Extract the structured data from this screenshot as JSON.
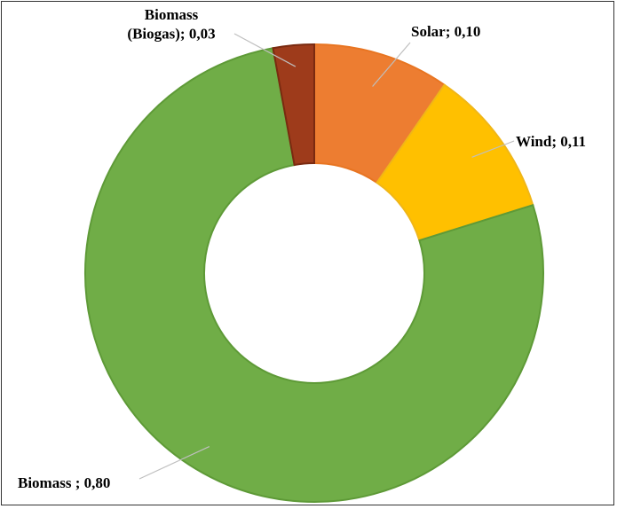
{
  "chart_data": {
    "type": "pie",
    "donut": true,
    "slices": [
      {
        "label": "Solar; 0,10",
        "category": "Solar",
        "value": 0.1,
        "color": "#ED7D31",
        "edge": "#E87522"
      },
      {
        "label": "Wind; 0,11",
        "category": "Wind",
        "value": 0.11,
        "color": "#FFC000",
        "edge": "#F0B618"
      },
      {
        "label": "Biomass ; 0,80",
        "category": "Biomass",
        "value": 0.8,
        "color": "#70AD47",
        "edge": "#5E9A37"
      },
      {
        "label_lines": [
          "Biomass",
          "(Biogas); 0,03"
        ],
        "category": "Biomass (Biogas)",
        "value": 0.03,
        "color": "#9E3B1B",
        "edge": "#7A2A10"
      }
    ],
    "title": "",
    "legend": "none"
  }
}
